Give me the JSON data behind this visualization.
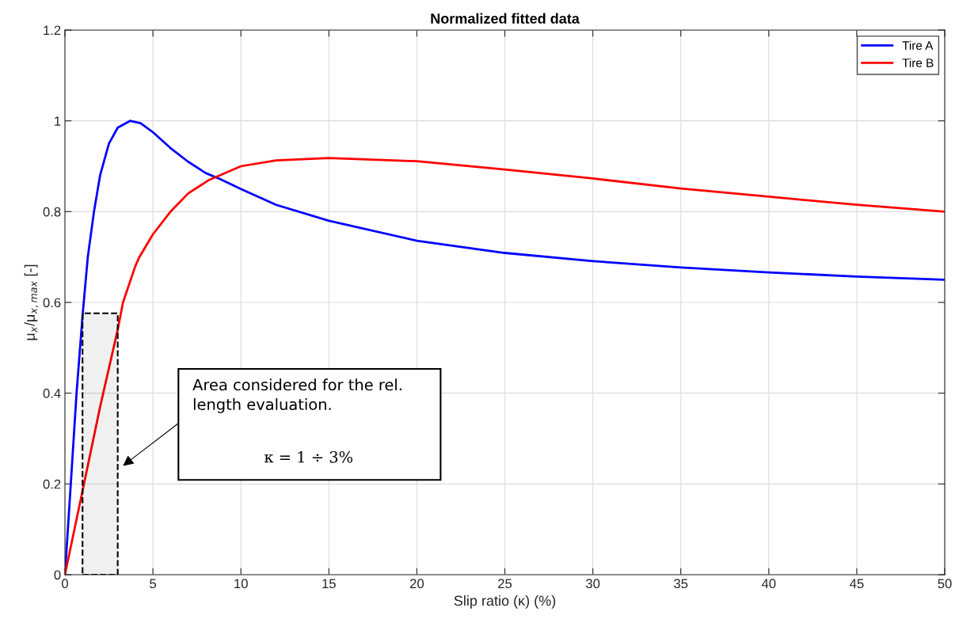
{
  "chart_data": {
    "type": "line",
    "title": "Normalized fitted data",
    "xlabel": "Slip ratio (κ) (%)",
    "ylabel": "μ$_{x}$/μ$_{x,max}$ [-]",
    "xlim": [
      0,
      50
    ],
    "ylim": [
      0,
      1.2
    ],
    "xticks": [
      0,
      5,
      10,
      15,
      20,
      25,
      30,
      35,
      40,
      45,
      50
    ],
    "yticks": [
      0,
      0.2,
      0.4,
      0.6,
      0.8,
      1,
      1.2
    ],
    "grid": true,
    "legend": "top right",
    "line_style": "solid",
    "marker": "none",
    "series": [
      {
        "name": "Tire A",
        "color": "#0000ff",
        "x": [
          0,
          0.3,
          0.66,
          1,
          1.3,
          1.65,
          2,
          2.5,
          3,
          3.7,
          4.3,
          5,
          6,
          7,
          8,
          8.8,
          10,
          12,
          15,
          20,
          25,
          30,
          35,
          40,
          45,
          50
        ],
        "values": [
          0,
          0.18,
          0.4,
          0.57,
          0.7,
          0.8,
          0.88,
          0.95,
          0.985,
          1.0,
          0.995,
          0.975,
          0.94,
          0.91,
          0.885,
          0.872,
          0.85,
          0.815,
          0.78,
          0.736,
          0.709,
          0.691,
          0.677,
          0.666,
          0.657,
          0.65
        ]
      },
      {
        "name": "Tire B",
        "color": "#ff0000",
        "x": [
          0,
          1,
          2,
          3,
          3.3,
          4,
          4.23,
          5,
          6,
          7,
          8.2,
          10,
          12,
          15,
          20,
          25,
          30,
          35,
          40,
          45,
          50
        ],
        "values": [
          0,
          0.185,
          0.37,
          0.54,
          0.6,
          0.68,
          0.7,
          0.75,
          0.8,
          0.84,
          0.87,
          0.9,
          0.913,
          0.918,
          0.911,
          0.893,
          0.873,
          0.851,
          0.833,
          0.815,
          0.8
        ]
      }
    ],
    "bands": [
      {
        "axis": "x",
        "from": 1,
        "to": 3
      }
    ],
    "annotations": [
      "Area considered for the rel. length evaluation.",
      "κ = 1 ÷ 3%"
    ]
  }
}
